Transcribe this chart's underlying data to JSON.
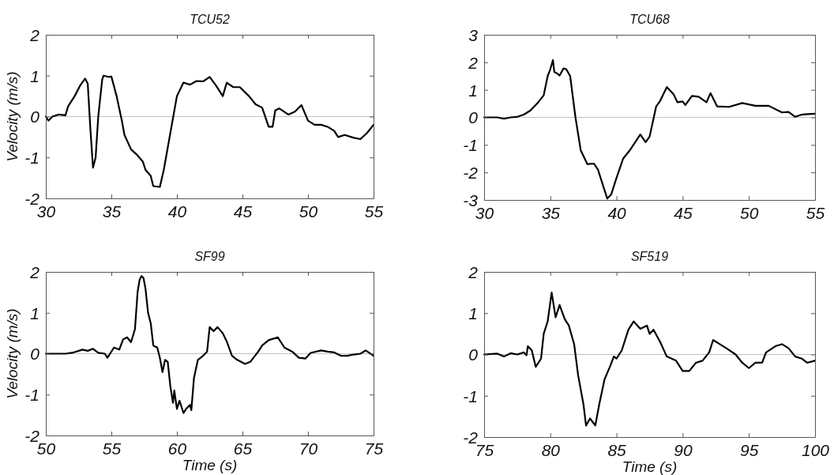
{
  "chart_data": [
    {
      "type": "line",
      "title": "TCU52",
      "ylabel": "Velocity (m/s)",
      "xlim": [
        30,
        55
      ],
      "xticks": [
        30,
        35,
        40,
        45,
        50,
        55
      ],
      "ylim": [
        -2,
        2
      ],
      "yticks": [
        -2,
        -1,
        0,
        1,
        2
      ],
      "ref_lines": [
        {
          "axis": "y",
          "value": 0,
          "color": "#c0c0c0"
        }
      ],
      "x": [
        30,
        30.2,
        30.5,
        31,
        31.5,
        31.7,
        32.2,
        32.6,
        33,
        33.2,
        33.4,
        33.6,
        33.8,
        34,
        34.3,
        34.4,
        34.8,
        35,
        35.4,
        35.8,
        36,
        36.5,
        37,
        37.4,
        37.6,
        38,
        38.2,
        38.7,
        39,
        39.5,
        40,
        40.5,
        41,
        41.5,
        42,
        42.5,
        43,
        43.5,
        43.8,
        44.3,
        44.8,
        45.5,
        46,
        46.5,
        47,
        47.3,
        47.5,
        47.8,
        48.5,
        49,
        49.5,
        50,
        50.5,
        51,
        51.5,
        52,
        52.3,
        52.8,
        53.5,
        54,
        54.5,
        55
      ],
      "series": [
        {
          "color": "#000000",
          "values": [
            0,
            -0.1,
            0,
            0.05,
            0.03,
            0.25,
            0.5,
            0.75,
            0.93,
            0.8,
            -0.3,
            -1.25,
            -1,
            0,
            0.9,
            1,
            0.97,
            0.98,
            0.5,
            -0.1,
            -0.45,
            -0.8,
            -0.95,
            -1.1,
            -1.3,
            -1.45,
            -1.7,
            -1.72,
            -1.3,
            -0.4,
            0.5,
            0.83,
            0.78,
            0.87,
            0.86,
            0.97,
            0.75,
            0.5,
            0.83,
            0.72,
            0.72,
            0.5,
            0.3,
            0.22,
            -0.25,
            -0.25,
            0.15,
            0.2,
            0.05,
            0.12,
            0.28,
            -0.1,
            -0.2,
            -0.2,
            -0.25,
            -0.35,
            -0.5,
            -0.45,
            -0.52,
            -0.55,
            -0.4,
            -0.2
          ]
        }
      ]
    },
    {
      "type": "line",
      "title": "TCU68",
      "xlim": [
        30,
        55
      ],
      "xticks": [
        30,
        35,
        40,
        45,
        50,
        55
      ],
      "ylim": [
        -3,
        3
      ],
      "yticks": [
        -3,
        -2,
        -1,
        0,
        1,
        2,
        3
      ],
      "ref_lines": [
        {
          "axis": "y",
          "value": 0,
          "color": "#c0c0c0"
        }
      ],
      "x": [
        30,
        31,
        31.5,
        32,
        32.5,
        33,
        33.5,
        34,
        34.5,
        34.8,
        35,
        35.2,
        35.3,
        35.5,
        35.7,
        36,
        36.2,
        36.5,
        36.9,
        37.3,
        37.8,
        38.3,
        38.6,
        39,
        39.3,
        39.6,
        40,
        40.5,
        41,
        41.8,
        42.2,
        42.5,
        43,
        43.3,
        43.8,
        44.3,
        44.6,
        45,
        45.2,
        45.7,
        46.2,
        46.8,
        47.1,
        47.6,
        48.5,
        49.5,
        50.5,
        51.5,
        52.5,
        53,
        53.5,
        54,
        55
      ],
      "series": [
        {
          "color": "#000000",
          "values": [
            0,
            0,
            -0.05,
            0,
            0.02,
            0.1,
            0.25,
            0.5,
            0.8,
            1.5,
            1.75,
            2.08,
            1.65,
            1.6,
            1.52,
            1.78,
            1.75,
            1.5,
            0,
            -1.2,
            -1.7,
            -1.68,
            -1.9,
            -2.5,
            -2.95,
            -2.8,
            -2.2,
            -1.5,
            -1.2,
            -0.62,
            -0.9,
            -0.7,
            0.4,
            0.6,
            1.1,
            0.85,
            0.55,
            0.58,
            0.45,
            0.78,
            0.75,
            0.55,
            0.88,
            0.4,
            0.38,
            0.52,
            0.42,
            0.42,
            0.18,
            0.2,
            0.02,
            0.1,
            0.13
          ]
        }
      ]
    },
    {
      "type": "line",
      "title": "SF99",
      "xlabel": "Time (s)",
      "ylabel": "Velocity (m/s)",
      "xlim": [
        50,
        75
      ],
      "xticks": [
        50,
        55,
        60,
        65,
        70,
        75
      ],
      "ylim": [
        -2,
        2
      ],
      "yticks": [
        -2,
        -1,
        0,
        1,
        2
      ],
      "ref_lines": [
        {
          "axis": "y",
          "value": 0,
          "color": "#c0c0c0"
        }
      ],
      "x": [
        50,
        51.5,
        52,
        52.8,
        53.2,
        53.6,
        54,
        54.5,
        54.7,
        55.2,
        55.6,
        55.9,
        56.2,
        56.5,
        56.8,
        57,
        57.15,
        57.3,
        57.45,
        57.6,
        57.8,
        58,
        58.2,
        58.5,
        58.7,
        58.9,
        59.1,
        59.3,
        59.5,
        59.7,
        59.8,
        60,
        60.2,
        60.5,
        60.7,
        61,
        61.1,
        61.3,
        61.6,
        62,
        62.3,
        62.5,
        62.8,
        63.1,
        63.5,
        63.8,
        64.2,
        64.6,
        65.2,
        65.6,
        66.2,
        66.5,
        67,
        67.7,
        68.2,
        68.8,
        69.3,
        69.8,
        70.2,
        71,
        71.5,
        72,
        72.5,
        73,
        73.5,
        74,
        74.4,
        75
      ],
      "series": [
        {
          "color": "#000000",
          "values": [
            0,
            0,
            0.02,
            0.1,
            0.07,
            0.12,
            0.02,
            0,
            -0.1,
            0.15,
            0.1,
            0.35,
            0.4,
            0.28,
            0.6,
            1.5,
            1.8,
            1.9,
            1.85,
            1.6,
            1,
            0.75,
            0.2,
            0.15,
            -0.1,
            -0.45,
            -0.15,
            -0.2,
            -0.8,
            -1.2,
            -0.9,
            -1.35,
            -1.15,
            -1.45,
            -1.35,
            -1.25,
            -1.38,
            -0.6,
            -0.15,
            -0.05,
            0.05,
            0.65,
            0.55,
            0.65,
            0.5,
            0.3,
            -0.05,
            -0.15,
            -0.25,
            -0.2,
            0.05,
            0.2,
            0.33,
            0.4,
            0.15,
            0.05,
            -0.1,
            -0.12,
            0.02,
            0.08,
            0.05,
            0.03,
            -0.05,
            -0.05,
            -0.02,
            0,
            0.08,
            -0.05
          ]
        }
      ]
    },
    {
      "type": "line",
      "title": "SF519",
      "xlabel": "Time (s)",
      "xlim": [
        75,
        100
      ],
      "xticks": [
        75,
        80,
        85,
        90,
        95,
        100
      ],
      "ylim": [
        -2,
        2
      ],
      "yticks": [
        -2,
        -1,
        0,
        1,
        2
      ],
      "ref_lines": [
        {
          "axis": "y",
          "value": 0,
          "color": "#c0c0c0"
        }
      ],
      "x": [
        75,
        76,
        76.5,
        77,
        77.5,
        78,
        78.2,
        78.3,
        78.6,
        78.9,
        79.3,
        79.5,
        79.8,
        80.1,
        80.4,
        80.7,
        81.1,
        81.4,
        81.8,
        82.1,
        82.5,
        82.7,
        83,
        83.4,
        83.7,
        84.1,
        84.5,
        84.8,
        85,
        85.4,
        85.9,
        86.3,
        86.8,
        87.3,
        87.5,
        87.8,
        88.3,
        88.8,
        89.5,
        90,
        90.5,
        91,
        91.5,
        92,
        92.3,
        92.8,
        93.3,
        94,
        94.5,
        95,
        95.5,
        96,
        96.3,
        97,
        97.5,
        98,
        98.5,
        99,
        99.4,
        100
      ],
      "series": [
        {
          "color": "#000000",
          "values": [
            0,
            0.02,
            -0.05,
            0.03,
            0,
            0.05,
            -0.02,
            0.2,
            0.1,
            -0.3,
            -0.1,
            0.5,
            0.8,
            1.5,
            0.9,
            1.2,
            0.85,
            0.7,
            0.25,
            -0.5,
            -1.2,
            -1.72,
            -1.55,
            -1.72,
            -1.2,
            -0.6,
            -0.3,
            -0.05,
            -0.1,
            0.1,
            0.6,
            0.8,
            0.62,
            0.7,
            0.5,
            0.6,
            0.3,
            -0.05,
            -0.15,
            -0.4,
            -0.4,
            -0.2,
            -0.15,
            0.05,
            0.35,
            0.25,
            0.15,
            0,
            -0.2,
            -0.33,
            -0.2,
            -0.2,
            0.05,
            0.2,
            0.25,
            0.15,
            -0.05,
            -0.1,
            -0.2,
            -0.15
          ]
        }
      ]
    }
  ]
}
